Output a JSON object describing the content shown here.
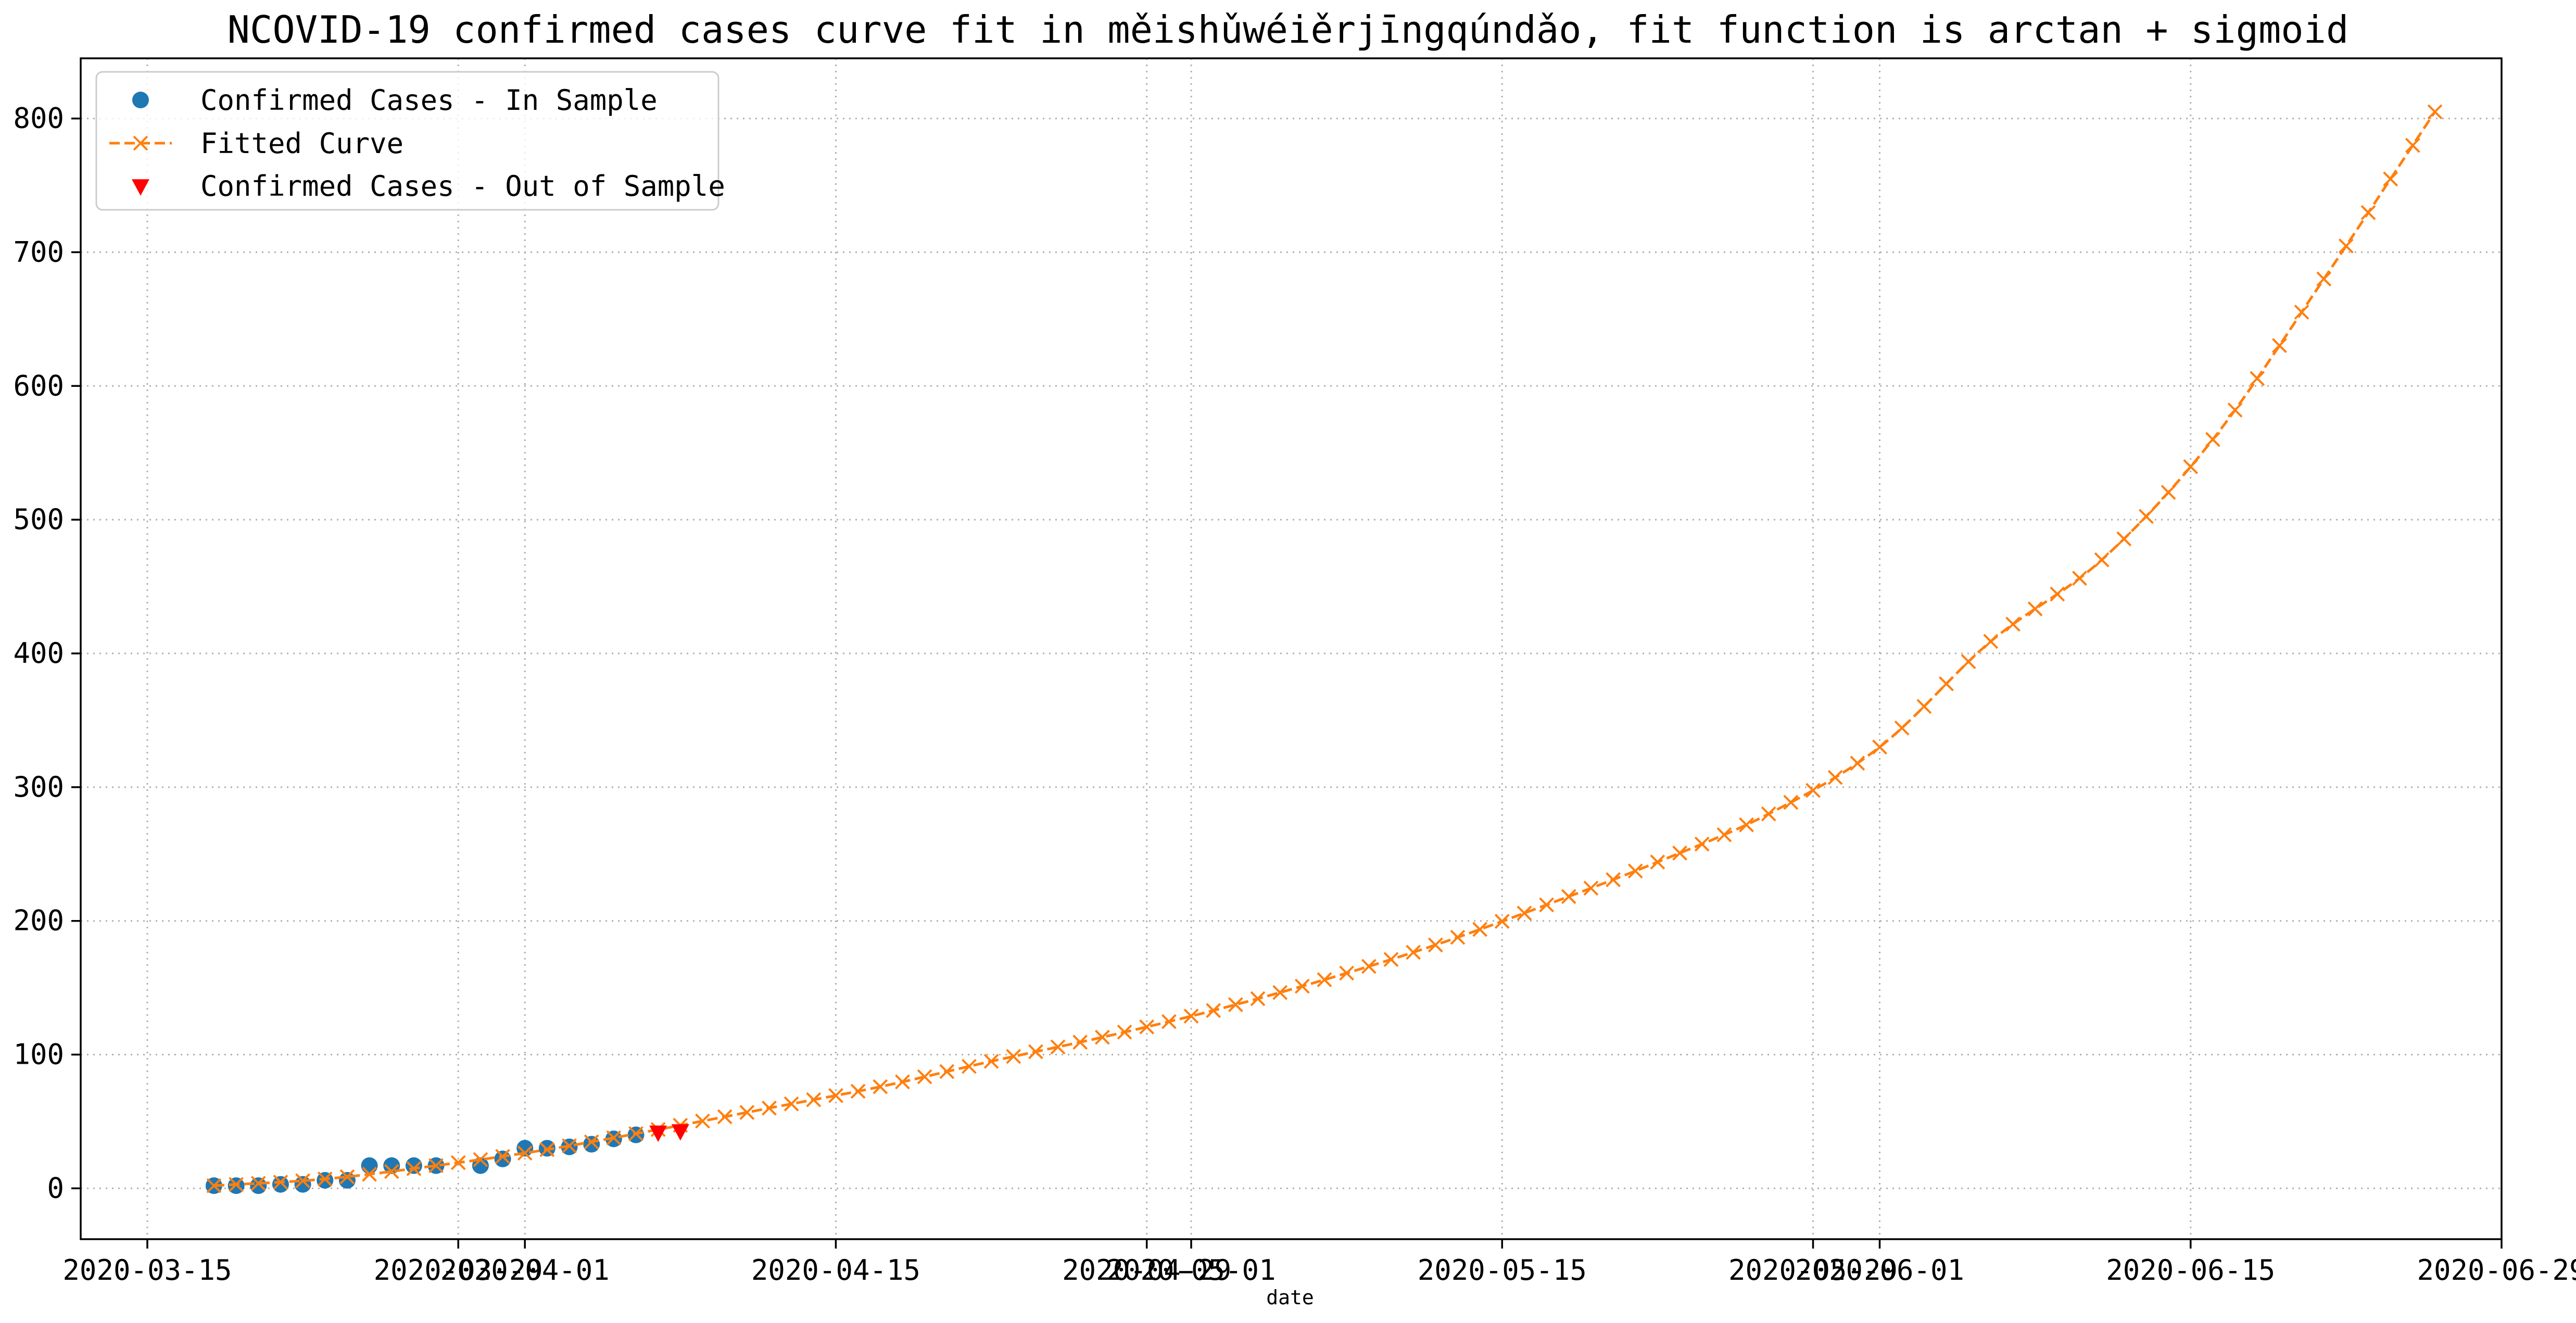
{
  "chart_data": {
    "type": "line",
    "title": "NCOVID-19 confirmed cases curve fit in měishǔwéiěrjīngqúndǎo, fit function is arctan + sigmoid",
    "xlabel": "date",
    "ylabel": "",
    "xlim": [
      "2020-03-12",
      "2020-06-29"
    ],
    "ylim": [
      -38,
      845
    ],
    "grid": true,
    "legend_position": "top-left",
    "x_ticks": [
      "2020-03-15",
      "2020-03-29",
      "2020-04-01",
      "2020-04-15",
      "2020-04-29",
      "2020-05-01",
      "2020-05-15",
      "2020-05-29",
      "2020-06-01",
      "2020-06-15",
      "2020-06-29"
    ],
    "x_tick_labels": [
      "2020-03-15",
      "2020-03-29",
      "2020-04-01",
      "2020-04-15",
      "2020-04-29",
      "2020-05-01",
      "2020-05-15",
      "2020-05-29",
      "2020-06-01",
      "2020-06-15",
      "2020-06-29"
    ],
    "y_ticks": [
      0,
      100,
      200,
      300,
      400,
      500,
      600,
      700,
      800
    ],
    "y_tick_labels": [
      "0",
      "100",
      "200",
      "300",
      "400",
      "500",
      "600",
      "700",
      "800"
    ],
    "series": [
      {
        "name": "Confirmed Cases - In Sample",
        "marker": "circle",
        "line": "none",
        "color": "#1f77b4",
        "x": [
          "2020-03-18",
          "2020-03-19",
          "2020-03-20",
          "2020-03-21",
          "2020-03-22",
          "2020-03-23",
          "2020-03-24",
          "2020-03-25",
          "2020-03-26",
          "2020-03-27",
          "2020-03-28",
          "2020-03-30",
          "2020-03-31",
          "2020-04-01",
          "2020-04-02",
          "2020-04-03",
          "2020-04-04",
          "2020-04-05",
          "2020-04-06"
        ],
        "y": [
          2,
          2,
          2,
          3,
          3,
          6,
          6,
          17,
          17,
          17,
          17,
          17,
          22,
          30,
          30,
          31,
          33,
          37,
          40
        ]
      },
      {
        "name": "Fitted Curve",
        "marker": "x",
        "line": "dashed",
        "color": "#ff7f0e",
        "x": [
          "2020-03-18",
          "2020-03-23",
          "2020-03-28",
          "2020-04-02",
          "2020-04-07",
          "2020-04-12",
          "2020-04-17",
          "2020-04-22",
          "2020-04-27",
          "2020-05-02",
          "2020-05-07",
          "2020-05-12",
          "2020-05-17",
          "2020-05-22",
          "2020-05-27",
          "2020-06-01",
          "2020-06-06",
          "2020-06-11",
          "2020-06-16",
          "2020-06-21",
          "2020-06-26"
        ],
        "y": [
          2,
          7,
          17,
          29,
          44,
          60,
          76,
          95,
          113,
          133,
          156,
          182,
          212,
          244,
          280,
          330,
          409,
          470,
          560,
          680,
          805
        ]
      },
      {
        "name": "Confirmed Cases - Out of Sample",
        "marker": "triangle-down",
        "line": "none",
        "color": "#ff0000",
        "x": [
          "2020-04-07",
          "2020-04-08"
        ],
        "y": [
          42,
          43
        ]
      }
    ]
  }
}
